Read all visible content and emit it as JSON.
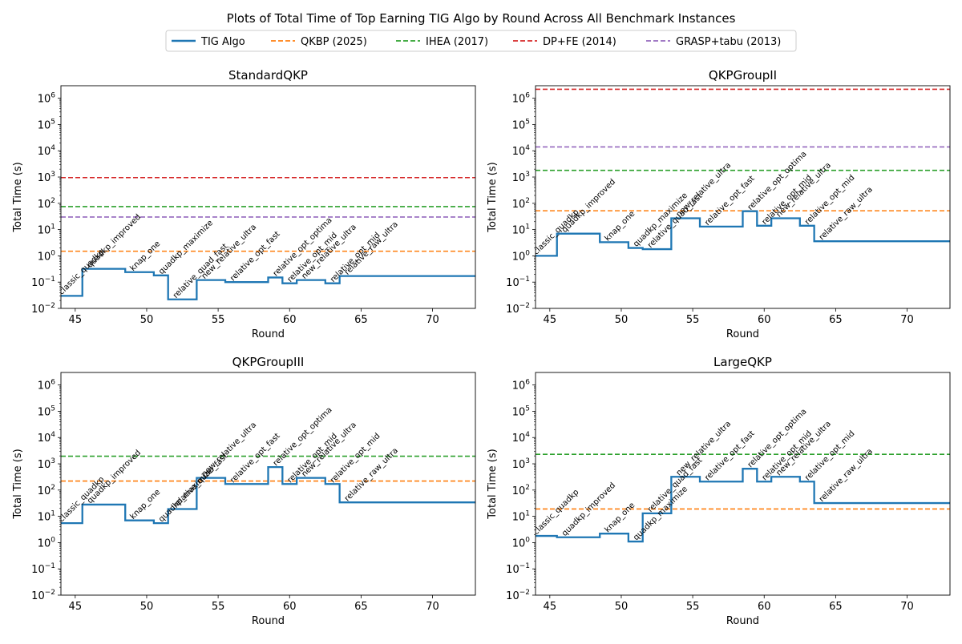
{
  "figure": {
    "title": "Plots of Total Time of Top Earning TIG Algo by Round Across All Benchmark Instances"
  },
  "legend": {
    "placement": "top-center",
    "items": [
      {
        "label": "TIG Algo",
        "style": "solid",
        "color": "#1f77b4"
      },
      {
        "label": "QKBP (2025)",
        "style": "dashed",
        "color": "#ff7f0e"
      },
      {
        "label": "IHEA (2017)",
        "style": "dashed",
        "color": "#2ca02c"
      },
      {
        "label": "DP+FE (2014)",
        "style": "dashed",
        "color": "#d62728"
      },
      {
        "label": "GRASP+tabu (2013)",
        "style": "dashed",
        "color": "#9467bd"
      }
    ]
  },
  "chart_data": [
    {
      "type": "line",
      "title": "StandardQKP",
      "xlabel": "Round",
      "ylabel": "Total Time (s)",
      "yscale": "log",
      "xlim": [
        44,
        73
      ],
      "ylim": [
        0.01,
        3000000
      ],
      "xticks": [
        45,
        50,
        55,
        60,
        65,
        70
      ],
      "yticks": [
        "10^-2",
        "10^-1",
        "10^0",
        "10^1",
        "10^2",
        "10^3",
        "10^4",
        "10^5",
        "10^6"
      ],
      "series": [
        {
          "name": "TIG Algo",
          "step": true,
          "x": [
            44,
            45.5,
            48.5,
            50.5,
            51.5,
            53.5,
            55.5,
            58.5,
            59.5,
            60.5,
            62.5,
            63.5,
            73
          ],
          "y": [
            0.03,
            0.32,
            0.24,
            0.18,
            0.022,
            0.12,
            0.1,
            0.15,
            0.09,
            0.12,
            0.09,
            0.17,
            0.17
          ]
        },
        {
          "name": "QKBP (2025)",
          "hline": 1.5
        },
        {
          "name": "IHEA (2017)",
          "hline": 75
        },
        {
          "name": "DP+FE (2014)",
          "hline": 950
        },
        {
          "name": "GRASP+tabu (2013)",
          "hline": 30
        }
      ],
      "annotations": [
        {
          "text": "classic_quadkp",
          "x": 44,
          "y": 0.03
        },
        {
          "text": "quadkp_improved",
          "x": 46,
          "y": 0.32
        },
        {
          "text": "knap_one",
          "x": 49,
          "y": 0.24
        },
        {
          "text": "quadkp_maximize",
          "x": 51,
          "y": 0.18
        },
        {
          "text": "relative_quad_fast",
          "x": 52,
          "y": 0.022
        },
        {
          "text": "new_relative_ultra",
          "x": 54,
          "y": 0.12
        },
        {
          "text": "relative_opt_fast",
          "x": 56,
          "y": 0.1
        },
        {
          "text": "relative_opt_optima",
          "x": 59,
          "y": 0.15
        },
        {
          "text": "relative_opt_mid",
          "x": 60,
          "y": 0.09
        },
        {
          "text": "new_relative_ultra",
          "x": 61,
          "y": 0.12
        },
        {
          "text": "relative_opt_mid",
          "x": 63,
          "y": 0.09
        },
        {
          "text": "relative_raw_ultra",
          "x": 64,
          "y": 0.17
        }
      ]
    },
    {
      "type": "line",
      "title": "QKPGroupII",
      "xlabel": "Round",
      "ylabel": "Total Time (s)",
      "yscale": "log",
      "xlim": [
        44,
        73
      ],
      "ylim": [
        0.01,
        3000000
      ],
      "xticks": [
        45,
        50,
        55,
        60,
        65,
        70
      ],
      "yticks": [
        "10^-2",
        "10^-1",
        "10^0",
        "10^1",
        "10^2",
        "10^3",
        "10^4",
        "10^5",
        "10^6"
      ],
      "series": [
        {
          "name": "TIG Algo",
          "step": true,
          "x": [
            44,
            45.5,
            48.5,
            50.5,
            51.5,
            53.5,
            55.5,
            58.5,
            59.5,
            60.5,
            62.5,
            63.5,
            73
          ],
          "y": [
            1.0,
            7,
            3.3,
            2.0,
            1.8,
            27,
            13,
            50,
            14,
            27,
            14,
            3.6,
            3.6
          ]
        },
        {
          "name": "QKBP (2025)",
          "hline": 52
        },
        {
          "name": "IHEA (2017)",
          "hline": 1800
        },
        {
          "name": "DP+FE (2014)",
          "hline": 2200000
        },
        {
          "name": "GRASP+tabu (2013)",
          "hline": 14000
        }
      ],
      "annotations": [
        {
          "text": "classic_quadkp",
          "x": 44,
          "y": 1.0
        },
        {
          "text": "quadkp_improved",
          "x": 46,
          "y": 7
        },
        {
          "text": "knap_one",
          "x": 49,
          "y": 3.3
        },
        {
          "text": "quadkp_maximize",
          "x": 51,
          "y": 2.0
        },
        {
          "text": "relative_quad_fast",
          "x": 52,
          "y": 1.8
        },
        {
          "text": "new_relative_ultra",
          "x": 54,
          "y": 27
        },
        {
          "text": "relative_opt_fast",
          "x": 56,
          "y": 13
        },
        {
          "text": "relative_opt_optima",
          "x": 59,
          "y": 50
        },
        {
          "text": "relative_opt_mid",
          "x": 60,
          "y": 14
        },
        {
          "text": "new_relative_ultra",
          "x": 61,
          "y": 27
        },
        {
          "text": "relative_opt_mid",
          "x": 63,
          "y": 14
        },
        {
          "text": "relative_raw_ultra",
          "x": 64,
          "y": 3.6
        }
      ]
    },
    {
      "type": "line",
      "title": "QKPGroupIII",
      "xlabel": "Round",
      "ylabel": "Total Time (s)",
      "yscale": "log",
      "xlim": [
        44,
        73
      ],
      "ylim": [
        0.01,
        3000000
      ],
      "xticks": [
        45,
        50,
        55,
        60,
        65,
        70
      ],
      "yticks": [
        "10^-2",
        "10^-1",
        "10^0",
        "10^1",
        "10^2",
        "10^3",
        "10^4",
        "10^5",
        "10^6"
      ],
      "series": [
        {
          "name": "TIG Algo",
          "step": true,
          "x": [
            44,
            45.5,
            48.5,
            50.5,
            51.5,
            53.5,
            55.5,
            58.5,
            59.5,
            60.5,
            62.5,
            63.5,
            73
          ],
          "y": [
            5.5,
            28,
            7,
            5.5,
            19,
            290,
            170,
            750,
            170,
            290,
            170,
            34,
            34
          ]
        },
        {
          "name": "QKBP (2025)",
          "hline": 220
        },
        {
          "name": "IHEA (2017)",
          "hline": 1950
        }
      ],
      "annotations": [
        {
          "text": "classic_quadkp",
          "x": 44,
          "y": 5.5
        },
        {
          "text": "quadkp_improved",
          "x": 46,
          "y": 28
        },
        {
          "text": "knap_one",
          "x": 49,
          "y": 7
        },
        {
          "text": "quadkp_maximize",
          "x": 51,
          "y": 5.5
        },
        {
          "text": "relative_quad_fast",
          "x": 52,
          "y": 19
        },
        {
          "text": "new_relative_ultra",
          "x": 54,
          "y": 290
        },
        {
          "text": "relative_opt_fast",
          "x": 56,
          "y": 170
        },
        {
          "text": "relative_opt_optima",
          "x": 59,
          "y": 750
        },
        {
          "text": "relative_opt_mid",
          "x": 60,
          "y": 170
        },
        {
          "text": "new_relative_ultra",
          "x": 61,
          "y": 290
        },
        {
          "text": "relative_opt_mid",
          "x": 63,
          "y": 170
        },
        {
          "text": "relative_raw_ultra",
          "x": 64,
          "y": 34
        }
      ]
    },
    {
      "type": "line",
      "title": "LargeQKP",
      "xlabel": "Round",
      "ylabel": "Total Time (s)",
      "yscale": "log",
      "xlim": [
        44,
        73
      ],
      "ylim": [
        0.01,
        3000000
      ],
      "xticks": [
        45,
        50,
        55,
        60,
        65,
        70
      ],
      "yticks": [
        "10^-2",
        "10^-1",
        "10^0",
        "10^1",
        "10^2",
        "10^3",
        "10^4",
        "10^5",
        "10^6"
      ],
      "series": [
        {
          "name": "TIG Algo",
          "step": true,
          "x": [
            44,
            45.5,
            48.5,
            50.5,
            51.5,
            53.5,
            55.5,
            58.5,
            59.5,
            60.5,
            62.5,
            63.5,
            73
          ],
          "y": [
            1.8,
            1.6,
            2.2,
            1.1,
            13,
            320,
            210,
            650,
            210,
            320,
            210,
            32,
            32
          ]
        },
        {
          "name": "QKBP (2025)",
          "hline": 19
        },
        {
          "name": "IHEA (2017)",
          "hline": 2300
        }
      ],
      "annotations": [
        {
          "text": "classic_quadkp",
          "x": 44,
          "y": 1.8
        },
        {
          "text": "quadkp_improved",
          "x": 46,
          "y": 1.6
        },
        {
          "text": "knap_one",
          "x": 49,
          "y": 2.2
        },
        {
          "text": "quadkp_maximize",
          "x": 51,
          "y": 1.1
        },
        {
          "text": "relative_quad_fast",
          "x": 52,
          "y": 13
        },
        {
          "text": "new_relative_ultra",
          "x": 54,
          "y": 320
        },
        {
          "text": "relative_opt_fast",
          "x": 56,
          "y": 210
        },
        {
          "text": "relative_opt_optima",
          "x": 59,
          "y": 650
        },
        {
          "text": "relative_opt_mid",
          "x": 60,
          "y": 210
        },
        {
          "text": "new_relative_ultra",
          "x": 61,
          "y": 320
        },
        {
          "text": "relative_opt_mid",
          "x": 63,
          "y": 210
        },
        {
          "text": "relative_raw_ultra",
          "x": 64,
          "y": 32
        }
      ]
    }
  ]
}
